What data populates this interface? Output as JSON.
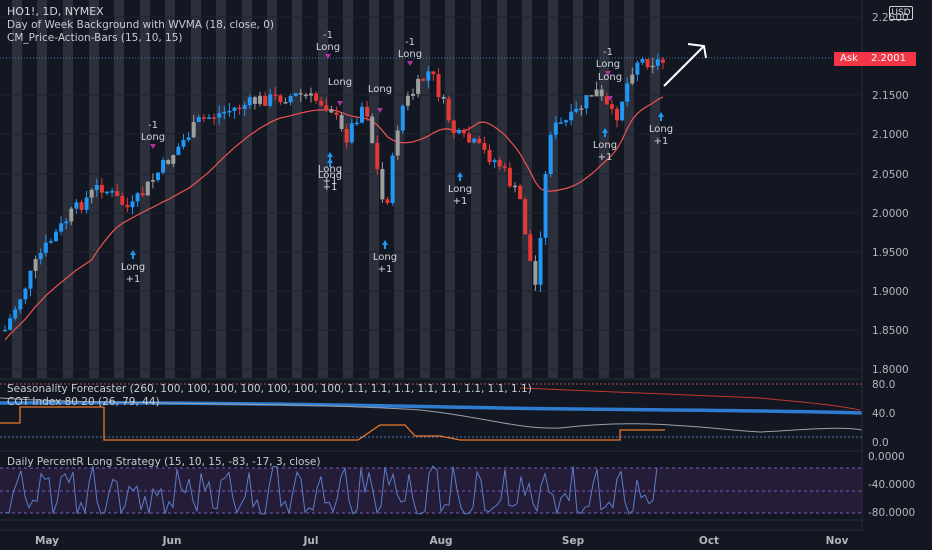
{
  "header": {
    "symbol_line": "HO1!, 1D, NYMEX",
    "indicator_1": "Day of Week Background with WVMA (18, close, 0)",
    "indicator_2": "CM_Price-Action-Bars (15, 10, 15)"
  },
  "currency_button": "USD",
  "ask_tag": {
    "label": "Ask",
    "price": "2.2001"
  },
  "price_axis": [
    "2.2500",
    "2.1500",
    "2.1000",
    "2.0500",
    "2.0000",
    "1.9500",
    "1.9000",
    "1.8500",
    "1.8000"
  ],
  "pane_seasonality": {
    "title_1": "Seasonality Forecaster (260, 100, 100, 100, 100, 100, 100, 100, 1.1, 1.1, 1.1, 1.1, 1.1, 1.1, 1.1, 1.1)",
    "title_2": "COT Index 80 20 (26, 79, 44)",
    "axis": [
      "80.0",
      "40.0",
      "0.0"
    ]
  },
  "pane_percentr": {
    "title": "Daily PercentR Long Strategy (15, 10, 15, -83, -17, 3, close)",
    "axis": [
      "0.0000",
      "-40.0000",
      "-80.0000"
    ]
  },
  "time_axis": [
    "May",
    "Jun",
    "Jul",
    "Aug",
    "Sep",
    "Oct",
    "Nov"
  ],
  "signals": [
    {
      "type": "long",
      "line1": "Long",
      "line2": "+1"
    },
    {
      "type": "exit",
      "line1": "-1",
      "line2": "Long"
    },
    {
      "type": "long",
      "line1": "Long",
      "line2": "+1"
    },
    {
      "type": "exit",
      "line1": "-1",
      "line2": "Long"
    },
    {
      "type": "exit",
      "line1": "Long",
      "line2": ""
    },
    {
      "type": "long",
      "line1": "Long",
      "line2": "+1"
    },
    {
      "type": "exit",
      "line1": "Long",
      "line2": ""
    },
    {
      "type": "long",
      "line1": "Long",
      "line2": "+1"
    },
    {
      "type": "exit",
      "line1": "-1",
      "line2": "Long"
    },
    {
      "type": "long",
      "line1": "Long",
      "line2": "+1"
    },
    {
      "type": "exit",
      "line1": "-1",
      "line2": "Long"
    },
    {
      "type": "exit",
      "line1": "Long",
      "line2": ""
    },
    {
      "type": "long",
      "line1": "Long",
      "line2": "+1"
    },
    {
      "type": "long",
      "line1": "Long",
      "line2": "+1"
    }
  ],
  "colors": {
    "background": "#131722",
    "up_candle": "#2196f3",
    "down_candle": "#e53935",
    "neutral_candle": "#9e9e9e",
    "day_band": "#363a45",
    "wvma": "#ef5350",
    "cot_orange": "#e8772e",
    "cot_blue": "#2e7dd1",
    "percentr": "#5b7ec9",
    "signal_arrow": "#2196f3",
    "exit_marker": "#b0309f",
    "ask": "#f23645"
  }
}
